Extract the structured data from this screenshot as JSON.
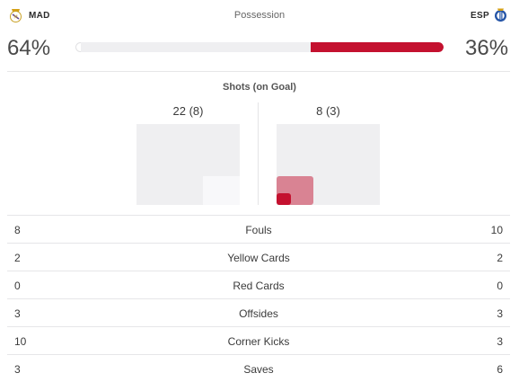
{
  "home": {
    "code": "MAD",
    "possession": "64%",
    "possession_value": 64,
    "crest_icon": "real-madrid-crest-icon"
  },
  "away": {
    "code": "ESP",
    "possession": "36%",
    "possession_value": 36,
    "crest_icon": "espanyol-crest-icon"
  },
  "possession_title": "Possession",
  "shots": {
    "title": "Shots (on Goal)",
    "home_value": "22 (8)",
    "away_value": "8 (3)"
  },
  "colors": {
    "away_accent": "#c4112f",
    "bar_track": "#eeeef0"
  },
  "stats": [
    {
      "label": "Fouls",
      "home": "8",
      "away": "10"
    },
    {
      "label": "Yellow Cards",
      "home": "2",
      "away": "2"
    },
    {
      "label": "Red Cards",
      "home": "0",
      "away": "0"
    },
    {
      "label": "Offsides",
      "home": "3",
      "away": "3"
    },
    {
      "label": "Corner Kicks",
      "home": "10",
      "away": "3"
    },
    {
      "label": "Saves",
      "home": "3",
      "away": "6"
    }
  ]
}
